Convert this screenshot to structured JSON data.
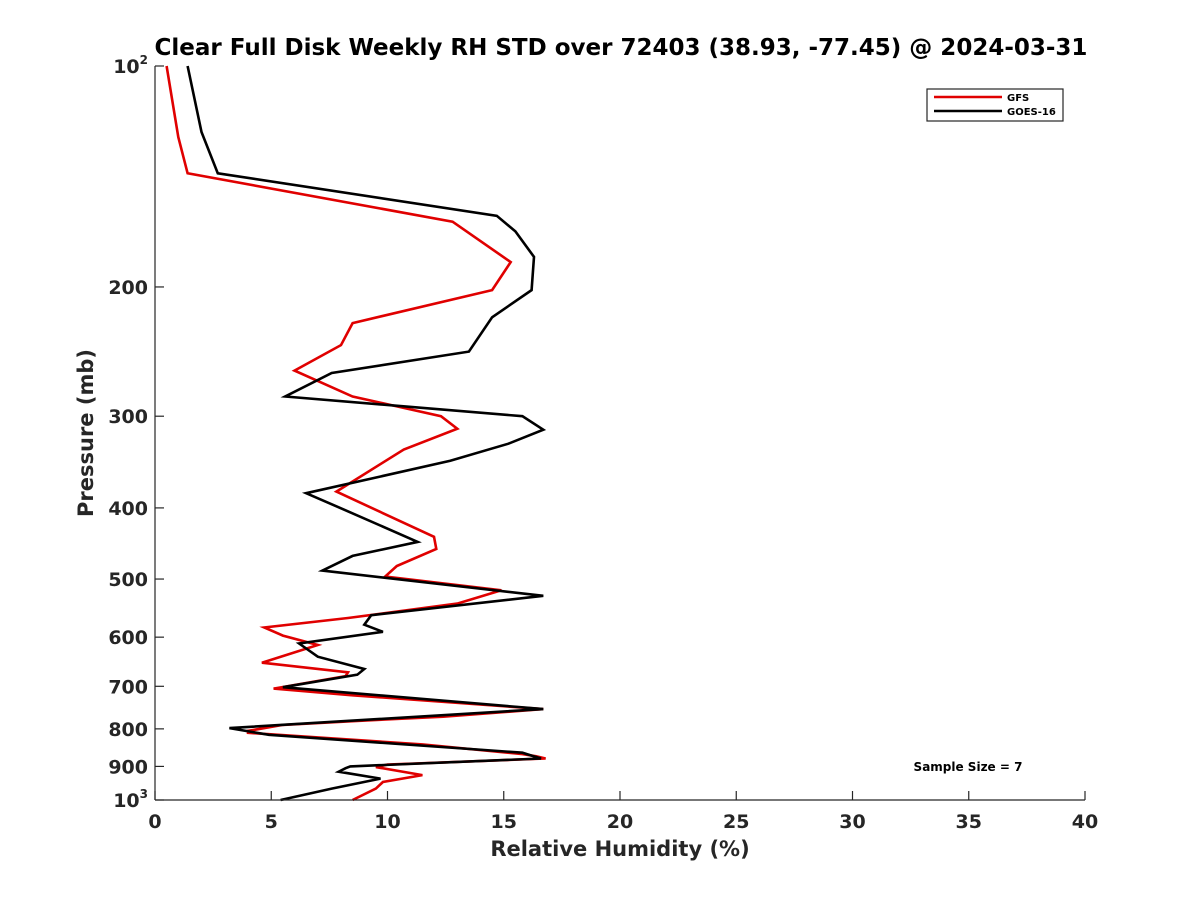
{
  "chart_data": {
    "type": "line",
    "title": "Clear Full Disk Weekly RH STD over 72403 (38.93, -77.45) @ 2024-03-31",
    "xlabel": "Relative Humidity (%)",
    "ylabel": "Pressure (mb)",
    "xlim": [
      0,
      40
    ],
    "ylim": [
      100,
      1000
    ],
    "y_scale": "log",
    "y_reversed": true,
    "grid": false,
    "legend_position": "top-right",
    "x_ticks": [
      "0",
      "5",
      "10",
      "15",
      "20",
      "25",
      "30",
      "35",
      "40"
    ],
    "y_ticks": [
      {
        "base": "10",
        "exp": "2"
      },
      {
        "base": "200",
        "exp": ""
      },
      {
        "base": "300",
        "exp": ""
      },
      {
        "base": "400",
        "exp": ""
      },
      {
        "base": "500",
        "exp": ""
      },
      {
        "base": "600",
        "exp": ""
      },
      {
        "base": "700",
        "exp": ""
      },
      {
        "base": "800",
        "exp": ""
      },
      {
        "base": "900",
        "exp": ""
      },
      {
        "base": "10",
        "exp": "3"
      }
    ],
    "annotation": "Sample Size = 7",
    "series": [
      {
        "name": "GFS",
        "color": "#e00000",
        "points": [
          [
            0.5,
            100
          ],
          [
            1.0,
            125
          ],
          [
            1.4,
            140
          ],
          [
            12.8,
            163
          ],
          [
            15.3,
            185
          ],
          [
            14.5,
            202
          ],
          [
            8.5,
            224
          ],
          [
            8.0,
            240
          ],
          [
            6.0,
            260
          ],
          [
            8.5,
            282
          ],
          [
            12.3,
            300
          ],
          [
            13.0,
            312
          ],
          [
            10.7,
            333
          ],
          [
            7.8,
            380
          ],
          [
            12.0,
            438
          ],
          [
            12.1,
            455
          ],
          [
            10.4,
            480
          ],
          [
            9.9,
            496
          ],
          [
            14.9,
            518
          ],
          [
            13.0,
            540
          ],
          [
            8.3,
            565
          ],
          [
            4.7,
            582
          ],
          [
            5.5,
            597
          ],
          [
            7.0,
            615
          ],
          [
            4.6,
            650
          ],
          [
            8.3,
            670
          ],
          [
            8.2,
            678
          ],
          [
            5.1,
            705
          ],
          [
            8.5,
            720
          ],
          [
            16.7,
            752
          ],
          [
            12.4,
            770
          ],
          [
            8.8,
            780
          ],
          [
            5.5,
            790
          ],
          [
            4.0,
            805
          ],
          [
            4.0,
            810
          ],
          [
            11.5,
            840
          ],
          [
            15.8,
            866
          ],
          [
            16.4,
            872
          ],
          [
            16.8,
            878
          ],
          [
            10.0,
            895
          ],
          [
            9.5,
            902
          ],
          [
            11.5,
            925
          ],
          [
            9.8,
            945
          ],
          [
            9.5,
            965
          ],
          [
            8.5,
            1000
          ]
        ]
      },
      {
        "name": "GOES-16",
        "color": "#000000",
        "points": [
          [
            1.4,
            100
          ],
          [
            2.0,
            123
          ],
          [
            2.7,
            140
          ],
          [
            14.7,
            160
          ],
          [
            15.5,
            168
          ],
          [
            16.3,
            182
          ],
          [
            16.2,
            202
          ],
          [
            14.5,
            220
          ],
          [
            13.5,
            245
          ],
          [
            7.6,
            262
          ],
          [
            5.6,
            282
          ],
          [
            15.8,
            300
          ],
          [
            16.7,
            313
          ],
          [
            15.2,
            327
          ],
          [
            12.7,
            345
          ],
          [
            6.5,
            382
          ],
          [
            7.8,
            398
          ],
          [
            11.3,
            445
          ],
          [
            8.5,
            465
          ],
          [
            7.2,
            487
          ],
          [
            16.7,
            527
          ],
          [
            9.3,
            560
          ],
          [
            9.0,
            577
          ],
          [
            9.8,
            590
          ],
          [
            6.2,
            612
          ],
          [
            7.0,
            638
          ],
          [
            9.0,
            663
          ],
          [
            8.7,
            675
          ],
          [
            5.5,
            702
          ],
          [
            16.7,
            752
          ],
          [
            3.2,
            798
          ],
          [
            4.9,
            815
          ],
          [
            15.8,
            862
          ],
          [
            16.2,
            870
          ],
          [
            16.6,
            878
          ],
          [
            8.4,
            900
          ],
          [
            8.2,
            905
          ],
          [
            7.9,
            915
          ],
          [
            9.7,
            935
          ],
          [
            7.6,
            965
          ],
          [
            5.4,
            1000
          ]
        ]
      }
    ]
  }
}
